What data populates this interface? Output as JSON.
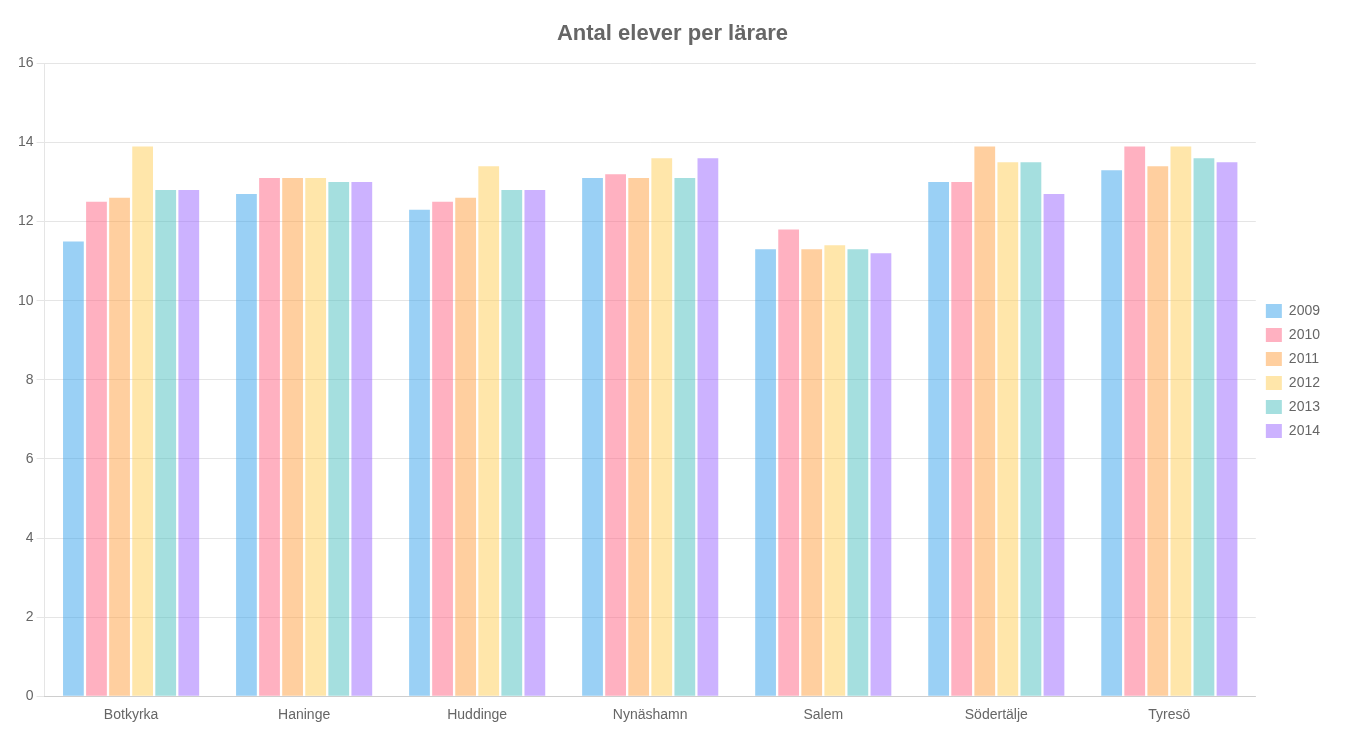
{
  "chart_data": {
    "type": "bar",
    "title": "Antal elever per lärare",
    "categories": [
      "Botkyrka",
      "Haninge",
      "Huddinge",
      "Nynäshamn",
      "Salem",
      "Södertälje",
      "Tyresö"
    ],
    "series": [
      {
        "name": "2009",
        "values": [
          11.5,
          12.7,
          12.3,
          13.1,
          11.3,
          13.0,
          13.3
        ]
      },
      {
        "name": "2010",
        "values": [
          12.5,
          13.1,
          12.5,
          13.2,
          11.8,
          13.0,
          13.9
        ]
      },
      {
        "name": "2011",
        "values": [
          12.6,
          13.1,
          12.6,
          13.1,
          11.3,
          13.9,
          13.4
        ]
      },
      {
        "name": "2012",
        "values": [
          13.9,
          13.1,
          13.4,
          13.6,
          11.4,
          13.5,
          13.9
        ]
      },
      {
        "name": "2013",
        "values": [
          12.8,
          13.0,
          12.8,
          13.1,
          11.3,
          13.5,
          13.6
        ]
      },
      {
        "name": "2014",
        "values": [
          12.8,
          13.0,
          12.8,
          13.6,
          11.2,
          12.7,
          13.5
        ]
      }
    ],
    "ylim": [
      0,
      16
    ],
    "yticks": [
      0,
      2,
      4,
      6,
      8,
      10,
      12,
      14,
      16
    ],
    "grid": true,
    "legend": "right"
  }
}
